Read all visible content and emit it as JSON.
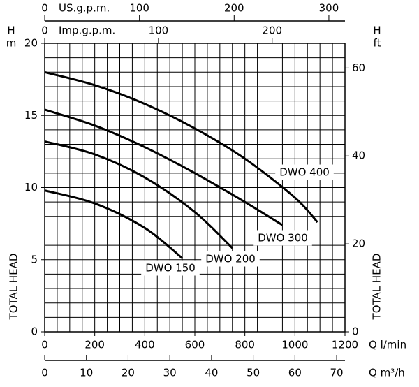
{
  "chart_data": {
    "type": "line",
    "y_label_symbol": "H",
    "y_label_unit": "m",
    "y2_label_symbol": "H",
    "y2_label_unit": "ft",
    "y_title": "TOTAL HEAD",
    "y2_title": "TOTAL HEAD",
    "x_label": "Q l/min",
    "xlim": [
      0,
      1200
    ],
    "xticks": [
      0,
      200,
      400,
      600,
      800,
      1000,
      1200
    ],
    "xgrid": [
      0,
      50,
      100,
      150,
      200,
      250,
      300,
      350,
      400,
      450,
      500,
      550,
      600,
      650,
      700,
      750,
      800,
      850,
      900,
      950,
      1000,
      1050,
      1100,
      1150,
      1200
    ],
    "ylim": [
      0,
      20
    ],
    "yticks": [
      0,
      5,
      10,
      15,
      20
    ],
    "ygrid": [
      0,
      1,
      2,
      3,
      4,
      5,
      6,
      7,
      8,
      9,
      10,
      11,
      12,
      13,
      14,
      15,
      16,
      17,
      18,
      19,
      20
    ],
    "y2lim": [
      0,
      65.62
    ],
    "y2ticks": [
      0,
      20,
      40,
      60
    ],
    "x2": {
      "label": "US.g.p.m.",
      "lim": [
        0,
        317.0
      ],
      "ticks": [
        0,
        100,
        200,
        300
      ]
    },
    "x3": {
      "label": "Imp.g.p.m.",
      "lim": [
        0,
        264.0
      ],
      "ticks": [
        0,
        100,
        200
      ]
    },
    "x4": {
      "label": "Q m³/h",
      "lim": [
        0,
        72
      ],
      "ticks": [
        0,
        10,
        20,
        30,
        40,
        50,
        60,
        70
      ]
    },
    "grid": true,
    "series": [
      {
        "name": "DWO 400",
        "color": "#000000",
        "x": [
          0,
          200,
          400,
          600,
          800,
          1000,
          1090
        ],
        "values": [
          18,
          17.1,
          15.8,
          14.1,
          12.0,
          9.3,
          7.6
        ]
      },
      {
        "name": "DWO 300",
        "color": "#000000",
        "x": [
          0,
          200,
          400,
          600,
          800,
          950
        ],
        "values": [
          15.4,
          14.3,
          12.8,
          11.0,
          9.0,
          7.4
        ]
      },
      {
        "name": "DWO 200",
        "color": "#000000",
        "x": [
          0,
          200,
          400,
          600,
          750
        ],
        "values": [
          13.2,
          12.3,
          10.7,
          8.3,
          5.8
        ]
      },
      {
        "name": "DWO 150",
        "color": "#000000",
        "x": [
          0,
          200,
          400,
          550
        ],
        "values": [
          9.8,
          8.9,
          7.2,
          5.1
        ]
      }
    ]
  }
}
